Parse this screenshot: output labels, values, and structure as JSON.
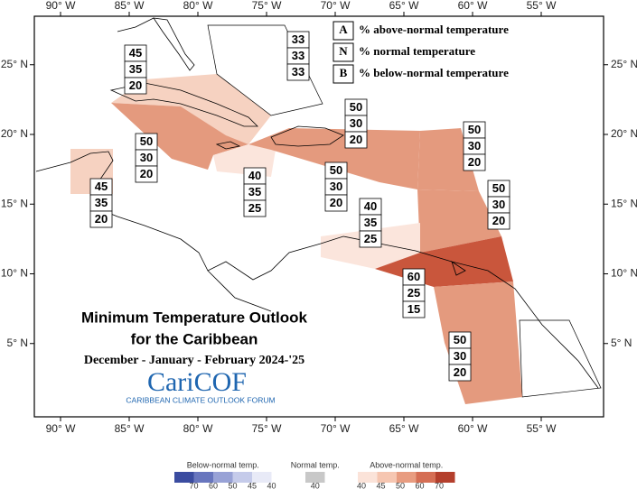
{
  "map": {
    "xticks": [
      {
        "value": -90,
        "label": "90° W"
      },
      {
        "value": -85,
        "label": "85° W"
      },
      {
        "value": -80,
        "label": "80° W"
      },
      {
        "value": -75,
        "label": "75° W"
      },
      {
        "value": -70,
        "label": "70° W"
      },
      {
        "value": -65,
        "label": "65° W"
      },
      {
        "value": -60,
        "label": "60° W"
      },
      {
        "value": -55,
        "label": "55° W"
      }
    ],
    "yticks": [
      {
        "value": 5,
        "label": "5° N"
      },
      {
        "value": 10,
        "label": "10° N"
      },
      {
        "value": 15,
        "label": "15° N"
      },
      {
        "value": 20,
        "label": "20° N"
      },
      {
        "value": 25,
        "label": "25° N"
      }
    ],
    "key": [
      {
        "letter": "A",
        "text": "% above-normal temperature"
      },
      {
        "letter": "N",
        "text": "% normal temperature"
      },
      {
        "letter": "B",
        "text": "% below-normal temperature"
      }
    ],
    "title": [
      "Minimum Temperature Outlook",
      "for the Caribbean"
    ],
    "period": "December - January - February 2024-'25",
    "logo": "CariCOF",
    "logo_subtitle": "CARIBBEAN CLIMATE OUTLOOK FORUM",
    "regions": [
      {
        "above": 45,
        "normal": 35,
        "below": 20,
        "color": "#f6d2c1"
      },
      {
        "above": 33,
        "normal": 33,
        "below": 33,
        "color": "#ffffff"
      },
      {
        "above": 50,
        "normal": 30,
        "below": 20,
        "color": "#e49a7e"
      },
      {
        "above": 40,
        "normal": 35,
        "below": 25,
        "color": "#fbe5dc"
      },
      {
        "above": 45,
        "normal": 35,
        "below": 20,
        "color": "#f6d2c1"
      },
      {
        "above": 50,
        "normal": 30,
        "below": 20,
        "color": "#e49a7e"
      },
      {
        "above": 50,
        "normal": 30,
        "below": 20,
        "color": "#e49a7e"
      },
      {
        "above": 50,
        "normal": 30,
        "below": 20,
        "color": "#e49a7e"
      },
      {
        "above": 50,
        "normal": 30,
        "below": 20,
        "color": "#e49a7e"
      },
      {
        "above": 40,
        "normal": 35,
        "below": 25,
        "color": "#fbe5dc"
      },
      {
        "above": 60,
        "normal": 25,
        "below": 15,
        "color": "#c9563c"
      },
      {
        "above": 50,
        "normal": 30,
        "below": 20,
        "color": "#e49a7e"
      }
    ],
    "colorbar": [
      {
        "label": "Below-normal temp.",
        "colors": [
          "#3b4ca0",
          "#6876be",
          "#98a2d6",
          "#c5cbea",
          "#e8eaf7"
        ],
        "ticks": [
          70,
          60,
          50,
          45,
          40
        ]
      },
      {
        "label": "Normal temp.",
        "colors": [
          "#c8c8c8"
        ],
        "ticks": [
          40
        ]
      },
      {
        "label": "Above-normal temp.",
        "colors": [
          "#fbe3d9",
          "#f6c6b1",
          "#e89c80",
          "#d56e54",
          "#b43f2c"
        ],
        "ticks": [
          40,
          45,
          50,
          60,
          70
        ]
      }
    ]
  }
}
